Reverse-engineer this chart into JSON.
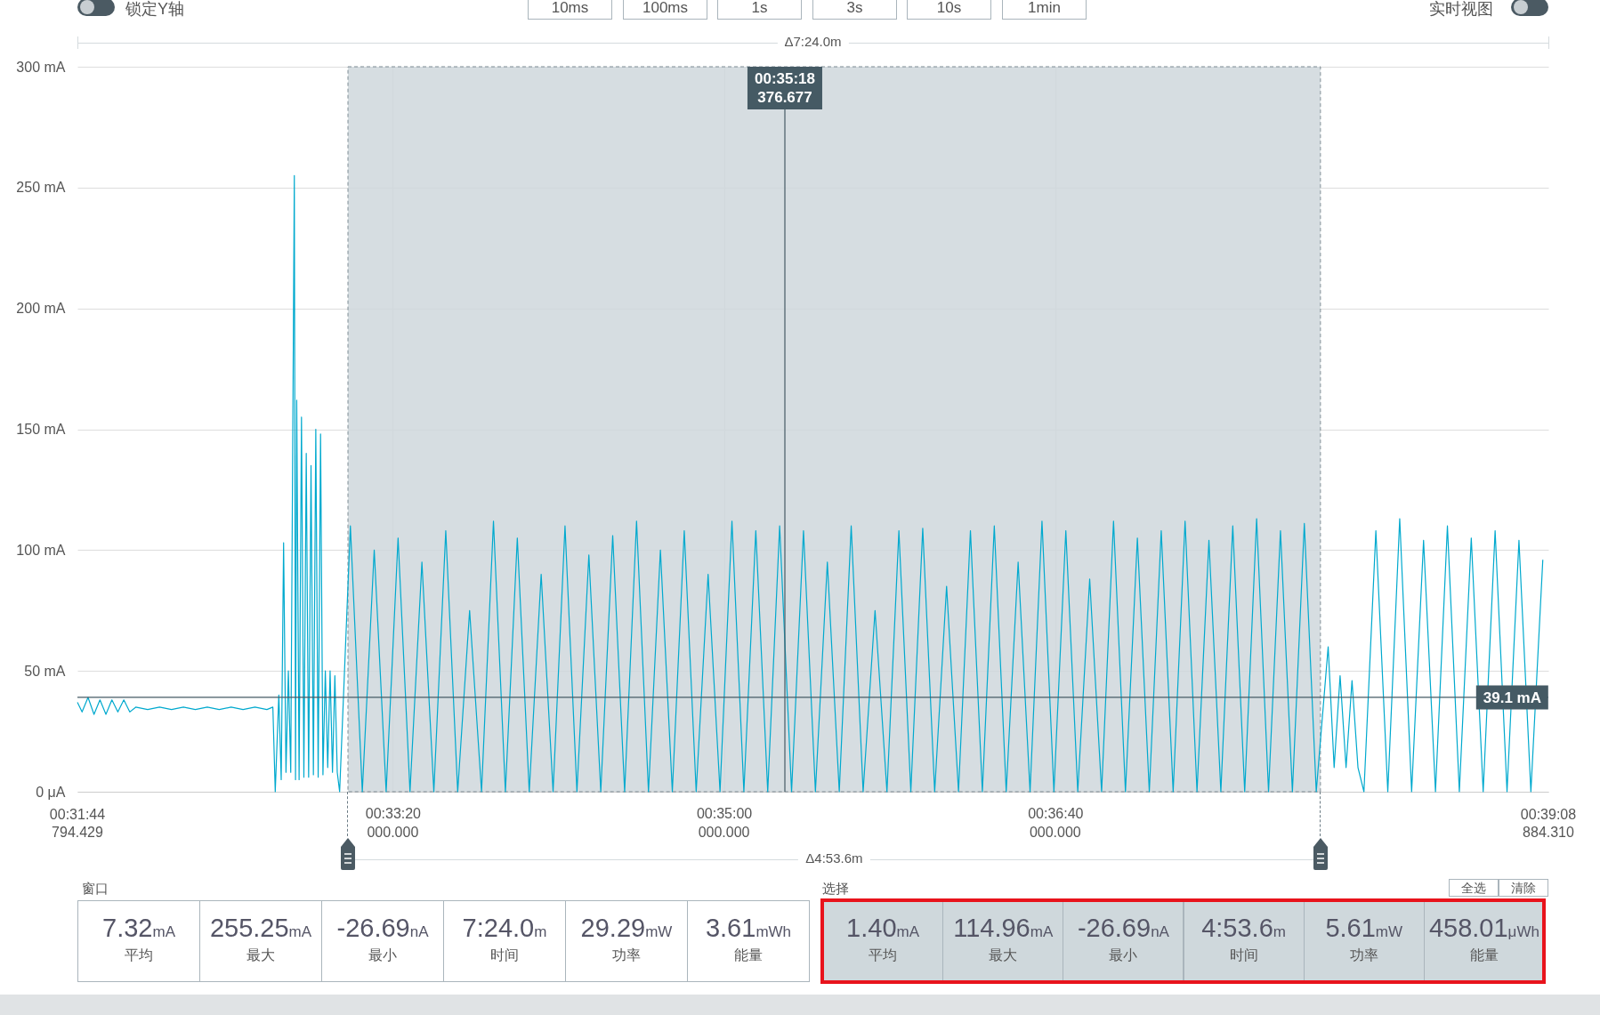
{
  "chart_data": {
    "type": "line",
    "color": "#00a9ce",
    "grid": true,
    "xlim": [
      0.529109564,
      0.652467864
    ],
    "xticks": [
      {
        "value": 0.555555556,
        "label": "00:33:20"
      },
      {
        "value": 0.583333333,
        "label": "00:35:00"
      },
      {
        "value": 0.611111111,
        "label": "00:36:40"
      }
    ],
    "ylim": [
      0,
      300
    ],
    "yticks": [
      {
        "value": 0,
        "label": "0 μA"
      },
      {
        "value": 50,
        "label": "50 mA"
      },
      {
        "value": 100,
        "label": "100 mA"
      },
      {
        "value": 150,
        "label": "150 mA"
      },
      {
        "value": 200,
        "label": "200 mA"
      },
      {
        "value": 250,
        "label": "250 mA"
      },
      {
        "value": 300,
        "label": "300 mA"
      }
    ],
    "x": [
      0.52911,
      0.5295,
      0.53,
      0.5305,
      0.531,
      0.5315,
      0.532,
      0.5325,
      0.533,
      0.5335,
      0.534,
      0.535,
      0.536,
      0.537,
      0.538,
      0.539,
      0.54,
      0.541,
      0.542,
      0.543,
      0.544,
      0.545,
      0.5455,
      0.5457,
      0.546,
      0.5462,
      0.5464,
      0.5466,
      0.5468,
      0.547,
      0.5473,
      0.5474,
      0.5475,
      0.5477,
      0.5479,
      0.5481,
      0.5483,
      0.5485,
      0.5487,
      0.5489,
      0.5491,
      0.5493,
      0.5495,
      0.5497,
      0.5499,
      0.5501,
      0.5503,
      0.5505,
      0.5507,
      0.5509,
      0.5511,
      0.552,
      0.553,
      0.554,
      0.555,
      0.556,
      0.557,
      0.558,
      0.559,
      0.56,
      0.561,
      0.562,
      0.563,
      0.564,
      0.565,
      0.566,
      0.567,
      0.568,
      0.569,
      0.57,
      0.571,
      0.572,
      0.573,
      0.574,
      0.575,
      0.576,
      0.577,
      0.578,
      0.579,
      0.58,
      0.581,
      0.582,
      0.583,
      0.584,
      0.585,
      0.586,
      0.587,
      0.588,
      0.589,
      0.59,
      0.591,
      0.592,
      0.593,
      0.594,
      0.595,
      0.596,
      0.597,
      0.598,
      0.599,
      0.6,
      0.601,
      0.602,
      0.603,
      0.604,
      0.605,
      0.606,
      0.607,
      0.608,
      0.609,
      0.61,
      0.611,
      0.612,
      0.613,
      0.614,
      0.615,
      0.616,
      0.617,
      0.618,
      0.619,
      0.62,
      0.621,
      0.622,
      0.623,
      0.624,
      0.625,
      0.626,
      0.627,
      0.628,
      0.629,
      0.63,
      0.631,
      0.632,
      0.633,
      0.634,
      0.6345,
      0.635,
      0.6355,
      0.636,
      0.6365,
      0.637,
      0.638,
      0.639,
      0.64,
      0.641,
      0.642,
      0.643,
      0.644,
      0.645,
      0.646,
      0.647,
      0.648,
      0.649,
      0.65,
      0.651,
      0.652
    ],
    "values": [
      37,
      33,
      39,
      32,
      38,
      32,
      38,
      33,
      38,
      33,
      35,
      34,
      35,
      34,
      35,
      34,
      35,
      34,
      35,
      34,
      35,
      34,
      35,
      0,
      40,
      5,
      103,
      8,
      50,
      8,
      255,
      5,
      162,
      5,
      155,
      6,
      140,
      6,
      135,
      7,
      150,
      6,
      148,
      7,
      50,
      10,
      50,
      8,
      48,
      8,
      0,
      110,
      0,
      100,
      0,
      105,
      0,
      95,
      0,
      108,
      0,
      75,
      0,
      112,
      0,
      105,
      0,
      90,
      0,
      110,
      0,
      98,
      0,
      106,
      0,
      112,
      0,
      100,
      0,
      108,
      0,
      90,
      0,
      112,
      0,
      108,
      0,
      110,
      0,
      108,
      0,
      95,
      0,
      110,
      0,
      75,
      0,
      108,
      0,
      109,
      0,
      85,
      0,
      108,
      0,
      110,
      0,
      95,
      0,
      112,
      0,
      108,
      0,
      88,
      0,
      112,
      0,
      105,
      0,
      108,
      0,
      112,
      0,
      104,
      0,
      110,
      0,
      113,
      0,
      108,
      0,
      111,
      0,
      60,
      10,
      48,
      10,
      46,
      10,
      0,
      108,
      0,
      113,
      0,
      104,
      0,
      110,
      0,
      105,
      0,
      108,
      0,
      104,
      0,
      96
    ],
    "bands": [
      {
        "axis": "x",
        "from": 0.551797,
        "to": 0.633353,
        "color": "#cfd8dc"
      }
    ],
    "ref_lines": [
      {
        "axis": "x",
        "value": 0.588437966,
        "color": "#455a64"
      },
      {
        "axis": "y",
        "value": 39.1,
        "label": "39.1 mA",
        "color": "#455a64"
      }
    ],
    "annotations": [
      "锁定Y轴",
      "10ms",
      "100ms",
      "1s",
      "3s",
      "10s",
      "1min",
      "实时视图",
      "Δ7:24.0m",
      "Δ4:53.6m",
      "窗口",
      "选择",
      "全选",
      "清除",
      "7.32mA",
      "平均",
      "255.25mA",
      "最大",
      "-26.69nA",
      "最小",
      "7:24.0m",
      "时间",
      "29.29mW",
      "功率",
      "3.61mWh",
      "能量",
      "1.40mA",
      "平均",
      "114.96mA",
      "最大",
      "-26.69nA",
      "最小",
      "4:53.6m",
      "时间",
      "5.61mW",
      "功率",
      "458.01μWh",
      "能量",
      "00:31:44\n794.429",
      "000.000",
      "000.000",
      "000.000",
      "00:39:08\n884.310",
      "00:35:18\n376.677"
    ]
  }
}
